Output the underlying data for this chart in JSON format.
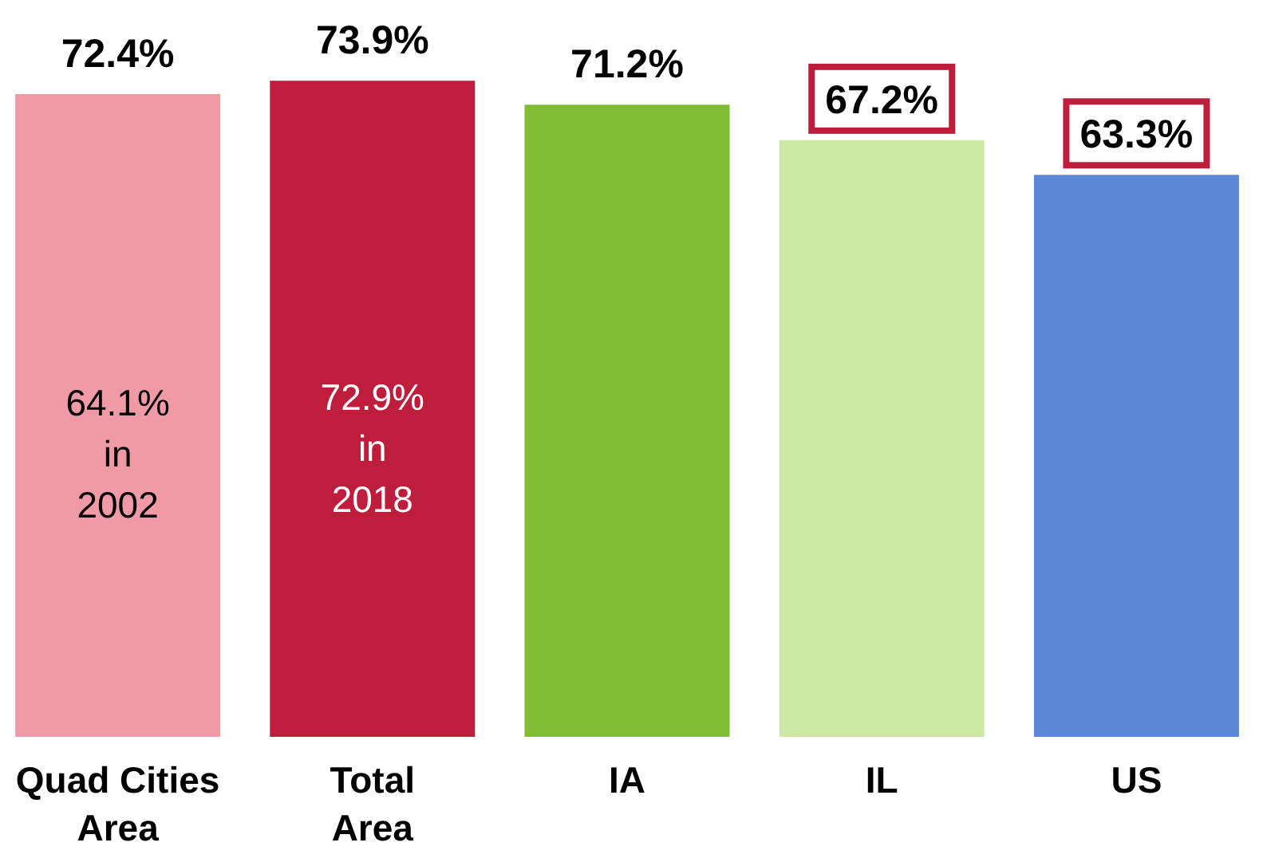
{
  "chart_data": {
    "type": "bar",
    "categories": [
      "Quad Cities Area",
      "Total Area",
      "IA",
      "IL",
      "US"
    ],
    "values": [
      72.4,
      73.9,
      71.2,
      67.2,
      63.3
    ],
    "colors": [
      "#f09aa8",
      "#be1e3c",
      "#80bd32",
      "#cce8a4",
      "#5b87d6"
    ],
    "ylim": [
      0,
      75
    ],
    "value_labels": [
      "72.4%",
      "73.9%",
      "71.2%",
      null,
      null
    ],
    "annotations": [
      "64.1% in 2002",
      "72.9% in 2018",
      {
        "text": "67.2%",
        "x": "IL",
        "y": 67.2
      },
      {
        "text": "63.3%",
        "x": "US",
        "y": 63.3
      }
    ],
    "tick_labels": "x"
  }
}
